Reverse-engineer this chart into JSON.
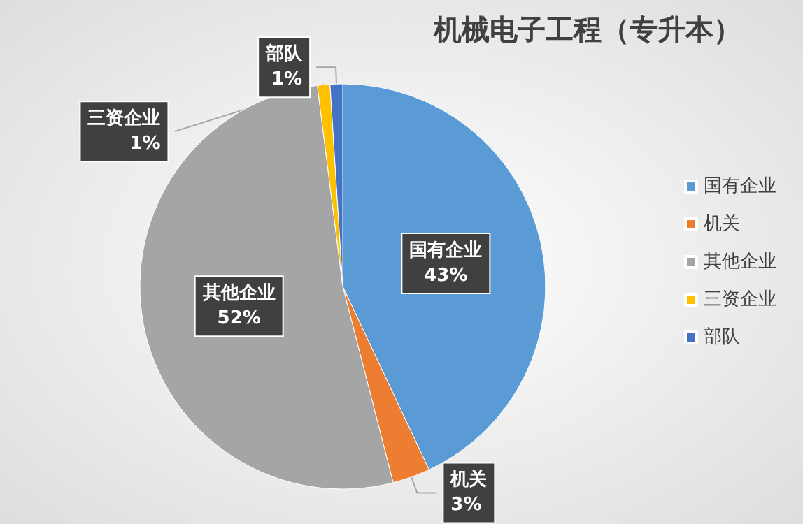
{
  "chart_data": {
    "type": "pie",
    "title": "机械电子工程（专升本）",
    "categories": [
      "国有企业",
      "机关",
      "其他企业",
      "三资企业",
      "部队"
    ],
    "values": [
      43,
      3,
      52,
      1,
      1
    ],
    "colors": [
      "#5b9bd5",
      "#ed7d31",
      "#a5a5a5",
      "#ffc000",
      "#4472c4"
    ],
    "value_labels": [
      "43%",
      "3%",
      "52%",
      "1%",
      "1%"
    ],
    "legend": "right"
  }
}
